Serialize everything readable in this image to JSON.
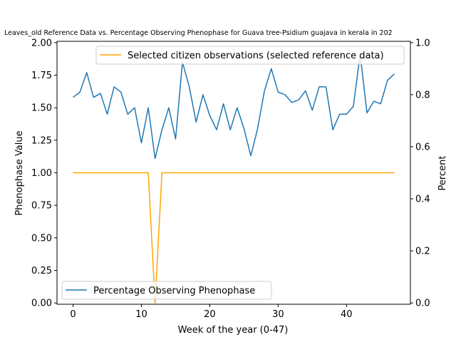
{
  "chart_data": {
    "type": "line",
    "title": "Leaves_old Reference Data vs. Percentage Observing Phenophase for Guava tree-Psidium guajava in kerala in 202",
    "xlabel": "Week of the year (0-47)",
    "ylabel_left": "Phenophase Value",
    "ylabel_right": "Percent",
    "xlim": [
      -2.35,
      49.35
    ],
    "ylim_left": [
      -0.01,
      2.01
    ],
    "ylim_right": [
      -0.005,
      1.005
    ],
    "x_ticks": [
      0,
      10,
      20,
      30,
      40
    ],
    "y_ticks_left": [
      0.0,
      0.25,
      0.5,
      0.75,
      1.0,
      1.25,
      1.5,
      1.75,
      2.0
    ],
    "y_ticks_left_labels": [
      "0.00",
      "0.25",
      "0.50",
      "0.75",
      "1.00",
      "1.25",
      "1.50",
      "1.75",
      "2.00"
    ],
    "y_ticks_right": [
      0.0,
      0.2,
      0.4,
      0.6,
      0.8,
      1.0
    ],
    "y_ticks_right_labels": [
      "0.0",
      "0.2",
      "0.4",
      "0.6",
      "0.8",
      "1.0"
    ],
    "series": [
      {
        "name": "Selected citizen observations (selected reference data)",
        "axis": "left",
        "color": "#ffa500",
        "legend_position": "upper-right",
        "x": [
          0,
          1,
          2,
          3,
          4,
          5,
          6,
          7,
          8,
          9,
          10,
          11,
          12,
          13,
          14,
          15,
          16,
          17,
          18,
          19,
          20,
          21,
          22,
          23,
          24,
          25,
          26,
          27,
          28,
          29,
          30,
          31,
          32,
          33,
          34,
          35,
          36,
          37,
          38,
          39,
          40,
          41,
          42,
          43,
          44,
          45,
          46,
          47
        ],
        "y": [
          1,
          1,
          1,
          1,
          1,
          1,
          1,
          1,
          1,
          1,
          1,
          1,
          0,
          1,
          1,
          1,
          1,
          1,
          1,
          1,
          1,
          1,
          1,
          1,
          1,
          1,
          1,
          1,
          1,
          1,
          1,
          1,
          1,
          1,
          1,
          1,
          1,
          1,
          1,
          1,
          1,
          1,
          1,
          1,
          1,
          1,
          1,
          1
        ]
      },
      {
        "name": "Percentage Observing Phenophase",
        "axis": "right",
        "color": "#1f77b4",
        "legend_position": "lower-left",
        "x": [
          0,
          1,
          2,
          3,
          4,
          5,
          6,
          7,
          8,
          9,
          10,
          11,
          12,
          13,
          14,
          15,
          16,
          17,
          18,
          19,
          20,
          21,
          22,
          23,
          24,
          25,
          26,
          27,
          28,
          29,
          30,
          31,
          32,
          33,
          34,
          35,
          36,
          37,
          38,
          39,
          40,
          41,
          42,
          43,
          44,
          45,
          46,
          47
        ],
        "y": [
          0.79,
          0.81,
          0.885,
          0.79,
          0.805,
          0.725,
          0.83,
          0.81,
          0.725,
          0.75,
          0.615,
          0.75,
          0.555,
          0.665,
          0.75,
          0.63,
          0.925,
          0.83,
          0.695,
          0.8,
          0.72,
          0.665,
          0.765,
          0.665,
          0.75,
          0.67,
          0.565,
          0.67,
          0.815,
          0.9,
          0.81,
          0.8,
          0.77,
          0.78,
          0.815,
          0.74,
          0.83,
          0.83,
          0.665,
          0.725,
          0.725,
          0.755,
          0.955,
          0.73,
          0.775,
          0.765,
          0.855,
          0.88
        ]
      }
    ]
  }
}
